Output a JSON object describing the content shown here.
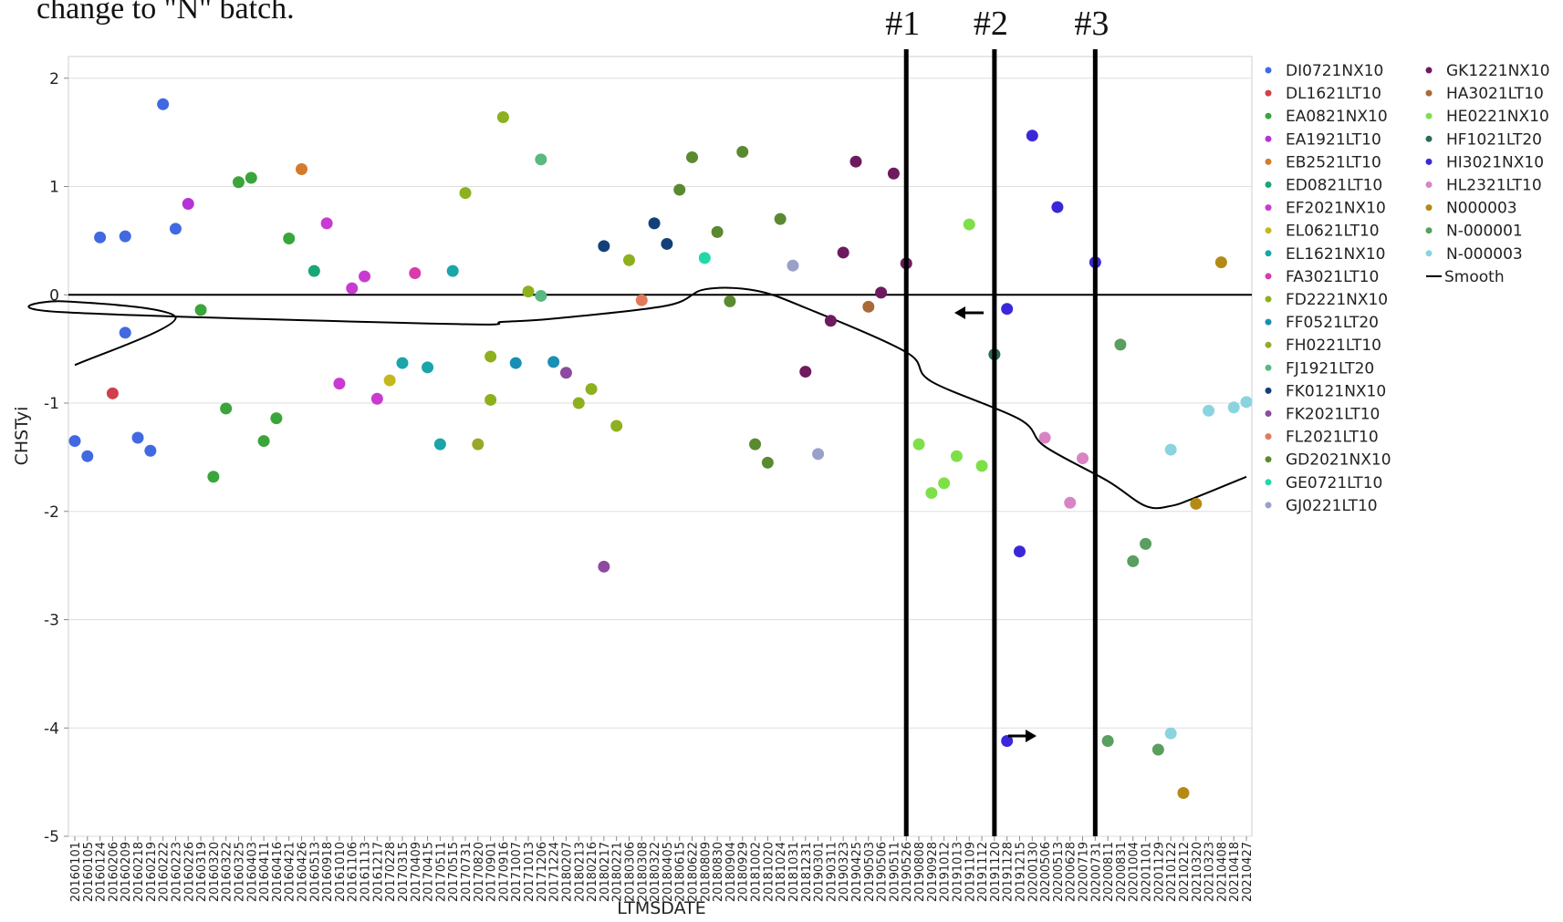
{
  "caption": "change to \"N\" batch.",
  "marker_labels": [
    "#1",
    "#2",
    "#3"
  ],
  "colors": {
    "DI0721NX10": "#4169e1",
    "DL1621LT10": "#d0404c",
    "EA0821NX10": "#3aa53a",
    "EA1921LT10": "#b534d6",
    "EB2521LT10": "#d47a2a",
    "ED0821LT10": "#1aa57a",
    "EF2021NX10": "#c83bd1",
    "EL0621LT10": "#c4b81e",
    "EL1621NX10": "#1aa5aa",
    "FA3021LT10": "#d93caa",
    "FD2221NX10": "#8db01e",
    "FF0521LT20": "#1a8fb5",
    "FH0221LT10": "#9aa82a",
    "FJ1921LT20": "#5ab882",
    "FK0121NX10": "#14407a",
    "FK2021LT10": "#8e4aa0",
    "FL2021LT10": "#e07a5a",
    "GD2021NX10": "#5a8a30",
    "GE0721LT10": "#20d8a8",
    "GJ0221LT10": "#9aa0c8",
    "GK1221NX10": "#6e1a5e",
    "HA3021LT10": "#a86a3a",
    "HE0221NX10": "#7ee048",
    "HF1021LT20": "#2a6a5a",
    "HI3021NX10": "#3a28d8",
    "HL2321LT10": "#d884c4",
    "N000003": "#b58a14",
    "N-000001": "#5a9e60",
    "N-000003": "#8ad4e0",
    "Smooth": "#000000"
  },
  "chart_data": {
    "type": "scatter",
    "title": "",
    "xlabel": "LTMSDATE",
    "ylabel": "CHSTyi",
    "ylim": [
      -5,
      2.2
    ],
    "yticks": [
      2,
      1,
      0,
      -1,
      -2,
      -3,
      -4,
      -5
    ],
    "grid": true,
    "reference_line_y": 0,
    "legend_position": "right",
    "legend": [
      "DI0721NX10",
      "DL1621LT10",
      "EA0821NX10",
      "EA1921LT10",
      "EB2521LT10",
      "ED0821LT10",
      "EF2021NX10",
      "EL0621LT10",
      "EL1621NX10",
      "FA3021LT10",
      "FD2221NX10",
      "FF0521LT20",
      "FH0221LT10",
      "FJ1921LT20",
      "FK0121NX10",
      "FK2021LT10",
      "FL2021LT10",
      "GD2021NX10",
      "GE0721LT10",
      "GJ0221LT10",
      "GK1221NX10",
      "HA3021LT10",
      "HE0221NX10",
      "HF1021LT20",
      "HI3021NX10",
      "HL2321LT10",
      "N000003",
      "N-000001",
      "N-000003",
      "Smooth"
    ],
    "categories": [
      "20160101",
      "20160105",
      "20160124",
      "20160206",
      "20160209",
      "20160218",
      "20160219",
      "20160222",
      "20160223",
      "20160226",
      "20160319",
      "20160320",
      "20160322",
      "20160325",
      "20160403",
      "20160411",
      "20160416",
      "20160421",
      "20160426",
      "20160513",
      "20160918",
      "20161010",
      "20161106",
      "20161113",
      "20161217",
      "20170228",
      "20170315",
      "20170409",
      "20170415",
      "20170511",
      "20170515",
      "20170731",
      "20170820",
      "20170901",
      "20170916",
      "20171007",
      "20171013",
      "20171206",
      "20171224",
      "20180207",
      "20180213",
      "20180216",
      "20180217",
      "20180221",
      "20180306",
      "20180308",
      "20180322",
      "20180405",
      "20180615",
      "20180622",
      "20180809",
      "20180830",
      "20180904",
      "20180929",
      "20181002",
      "20181020",
      "20181024",
      "20181031",
      "20181231",
      "20190301",
      "20190311",
      "20190323",
      "20190425",
      "20190503",
      "20190506",
      "20190511",
      "20190526",
      "20190808",
      "20190928",
      "20191012",
      "20191013",
      "20191109",
      "20191112",
      "20191120",
      "20191128",
      "20191215",
      "20200130",
      "20200506",
      "20200513",
      "20200628",
      "20200719",
      "20200731",
      "20200811",
      "20200831",
      "20201004",
      "20201101",
      "20201129",
      "20210122",
      "20210212",
      "20210320",
      "20210323",
      "20210408",
      "20210418",
      "20210427"
    ],
    "points": [
      {
        "x": "20160101",
        "y": -1.35,
        "series": "DI0721NX10"
      },
      {
        "x": "20160105",
        "y": -1.49,
        "series": "DI0721NX10"
      },
      {
        "x": "20160124",
        "y": 0.53,
        "series": "DI0721NX10"
      },
      {
        "x": "20160206",
        "y": -0.91,
        "series": "DL1621LT10"
      },
      {
        "x": "20160209",
        "y": 0.54,
        "series": "DI0721NX10"
      },
      {
        "x": "20160209",
        "y": -0.35,
        "series": "DI0721NX10"
      },
      {
        "x": "20160218",
        "y": -1.32,
        "series": "DI0721NX10"
      },
      {
        "x": "20160219",
        "y": -1.44,
        "series": "DI0721NX10"
      },
      {
        "x": "20160222",
        "y": 1.76,
        "series": "DI0721NX10"
      },
      {
        "x": "20160223",
        "y": 0.61,
        "series": "DI0721NX10"
      },
      {
        "x": "20160226",
        "y": 0.84,
        "series": "EA1921LT10"
      },
      {
        "x": "20160319",
        "y": -0.14,
        "series": "EA0821NX10"
      },
      {
        "x": "20160320",
        "y": -1.68,
        "series": "EA0821NX10"
      },
      {
        "x": "20160322",
        "y": -1.05,
        "series": "EA0821NX10"
      },
      {
        "x": "20160325",
        "y": 1.04,
        "series": "EA0821NX10"
      },
      {
        "x": "20160403",
        "y": 1.08,
        "series": "EA0821NX10"
      },
      {
        "x": "20160411",
        "y": -1.35,
        "series": "EA0821NX10"
      },
      {
        "x": "20160416",
        "y": -1.14,
        "series": "EA0821NX10"
      },
      {
        "x": "20160421",
        "y": 0.52,
        "series": "EA0821NX10"
      },
      {
        "x": "20160426",
        "y": 1.16,
        "series": "EB2521LT10"
      },
      {
        "x": "20160513",
        "y": 0.22,
        "series": "ED0821LT10"
      },
      {
        "x": "20160918",
        "y": 0.66,
        "series": "EF2021NX10"
      },
      {
        "x": "20161010",
        "y": -0.82,
        "series": "EF2021NX10"
      },
      {
        "x": "20161106",
        "y": 0.06,
        "series": "EF2021NX10"
      },
      {
        "x": "20161113",
        "y": 0.17,
        "series": "EF2021NX10"
      },
      {
        "x": "20161217",
        "y": -0.96,
        "series": "EF2021NX10"
      },
      {
        "x": "20170228",
        "y": -0.79,
        "series": "EL0621LT10"
      },
      {
        "x": "20170315",
        "y": -0.63,
        "series": "EL1621NX10"
      },
      {
        "x": "20170409",
        "y": 0.2,
        "series": "FA3021LT10"
      },
      {
        "x": "20170415",
        "y": -0.67,
        "series": "EL1621NX10"
      },
      {
        "x": "20170511",
        "y": -1.38,
        "series": "EL1621NX10"
      },
      {
        "x": "20170515",
        "y": 0.22,
        "series": "EL1621NX10"
      },
      {
        "x": "20170731",
        "y": 0.94,
        "series": "FD2221NX10"
      },
      {
        "x": "20170820",
        "y": -1.38,
        "series": "FH0221LT10"
      },
      {
        "x": "20170901",
        "y": -0.57,
        "series": "FD2221NX10"
      },
      {
        "x": "20170901",
        "y": -0.97,
        "series": "FD2221NX10"
      },
      {
        "x": "20170916",
        "y": 1.64,
        "series": "FD2221NX10"
      },
      {
        "x": "20171007",
        "y": -0.63,
        "series": "FF0521LT20"
      },
      {
        "x": "20171013",
        "y": 0.03,
        "series": "FD2221NX10"
      },
      {
        "x": "20171206",
        "y": 1.25,
        "series": "FJ1921LT20"
      },
      {
        "x": "20171206",
        "y": -0.01,
        "series": "FJ1921LT20"
      },
      {
        "x": "20171224",
        "y": -0.62,
        "series": "FF0521LT20"
      },
      {
        "x": "20180207",
        "y": -0.72,
        "series": "FK2021LT10"
      },
      {
        "x": "20180213",
        "y": -1.0,
        "series": "FD2221NX10"
      },
      {
        "x": "20180216",
        "y": -0.87,
        "series": "FD2221NX10"
      },
      {
        "x": "20180217",
        "y": 0.45,
        "series": "FK0121NX10"
      },
      {
        "x": "20180217",
        "y": -2.51,
        "series": "FK2021LT10"
      },
      {
        "x": "20180221",
        "y": -1.21,
        "series": "FD2221NX10"
      },
      {
        "x": "20180306",
        "y": 0.32,
        "series": "FD2221NX10"
      },
      {
        "x": "20180308",
        "y": -0.05,
        "series": "FL2021LT10"
      },
      {
        "x": "20180322",
        "y": 0.66,
        "series": "FK0121NX10"
      },
      {
        "x": "20180405",
        "y": 0.47,
        "series": "FK0121NX10"
      },
      {
        "x": "20180615",
        "y": 0.97,
        "series": "GD2021NX10"
      },
      {
        "x": "20180622",
        "y": 1.27,
        "series": "GD2021NX10"
      },
      {
        "x": "20180809",
        "y": 0.34,
        "series": "GE0721LT10"
      },
      {
        "x": "20180830",
        "y": 0.58,
        "series": "GD2021NX10"
      },
      {
        "x": "20180904",
        "y": -0.06,
        "series": "GD2021NX10"
      },
      {
        "x": "20180929",
        "y": 1.32,
        "series": "GD2021NX10"
      },
      {
        "x": "20181002",
        "y": -1.38,
        "series": "GD2021NX10"
      },
      {
        "x": "20181020",
        "y": -1.55,
        "series": "GD2021NX10"
      },
      {
        "x": "20181024",
        "y": 0.7,
        "series": "GD2021NX10"
      },
      {
        "x": "20181031",
        "y": 0.27,
        "series": "GJ0221LT10"
      },
      {
        "x": "20181231",
        "y": -0.71,
        "series": "GK1221NX10"
      },
      {
        "x": "20190301",
        "y": -1.47,
        "series": "GJ0221LT10"
      },
      {
        "x": "20190311",
        "y": -0.24,
        "series": "GK1221NX10"
      },
      {
        "x": "20190323",
        "y": 0.39,
        "series": "GK1221NX10"
      },
      {
        "x": "20190425",
        "y": 1.23,
        "series": "GK1221NX10"
      },
      {
        "x": "20190503",
        "y": -0.11,
        "series": "HA3021LT10"
      },
      {
        "x": "20190506",
        "y": 0.02,
        "series": "GK1221NX10"
      },
      {
        "x": "20190511",
        "y": 1.12,
        "series": "GK1221NX10"
      },
      {
        "x": "20190526",
        "y": 0.29,
        "series": "GK1221NX10"
      },
      {
        "x": "20190808",
        "y": -1.38,
        "series": "HE0221NX10"
      },
      {
        "x": "20190928",
        "y": -1.83,
        "series": "HE0221NX10"
      },
      {
        "x": "20191012",
        "y": -1.74,
        "series": "HE0221NX10"
      },
      {
        "x": "20191013",
        "y": -1.49,
        "series": "HE0221NX10"
      },
      {
        "x": "20191109",
        "y": 0.65,
        "series": "HE0221NX10"
      },
      {
        "x": "20191112",
        "y": -1.58,
        "series": "HE0221NX10"
      },
      {
        "x": "20191120",
        "y": -0.55,
        "series": "HF1021LT20"
      },
      {
        "x": "20191128",
        "y": -0.13,
        "series": "HI3021NX10"
      },
      {
        "x": "20191128",
        "y": -4.12,
        "series": "HI3021NX10"
      },
      {
        "x": "20191215",
        "y": -2.37,
        "series": "HI3021NX10"
      },
      {
        "x": "20200130",
        "y": 1.47,
        "series": "HI3021NX10"
      },
      {
        "x": "20200506",
        "y": -1.32,
        "series": "HL2321LT10"
      },
      {
        "x": "20200513",
        "y": 0.81,
        "series": "HI3021NX10"
      },
      {
        "x": "20200628",
        "y": -1.92,
        "series": "HL2321LT10"
      },
      {
        "x": "20200719",
        "y": -1.51,
        "series": "HL2321LT10"
      },
      {
        "x": "20200731",
        "y": 0.3,
        "series": "HI3021NX10"
      },
      {
        "x": "20200811",
        "y": -4.12,
        "series": "N-000001"
      },
      {
        "x": "20200831",
        "y": -0.46,
        "series": "N-000001"
      },
      {
        "x": "20201004",
        "y": -2.46,
        "series": "N-000001"
      },
      {
        "x": "20201101",
        "y": -2.3,
        "series": "N-000001"
      },
      {
        "x": "20201129",
        "y": -4.2,
        "series": "N-000001"
      },
      {
        "x": "20210122",
        "y": -4.05,
        "series": "N-000003"
      },
      {
        "x": "20210122",
        "y": -1.43,
        "series": "N-000003"
      },
      {
        "x": "20210212",
        "y": -4.6,
        "series": "N000003"
      },
      {
        "x": "20210320",
        "y": -1.93,
        "series": "N000003"
      },
      {
        "x": "20210323",
        "y": -1.07,
        "series": "N-000003"
      },
      {
        "x": "20210408",
        "y": 0.3,
        "series": "N000003"
      },
      {
        "x": "20210418",
        "y": -1.04,
        "series": "N-000003"
      },
      {
        "x": "20210427",
        "y": -0.99,
        "series": "N-000003"
      }
    ],
    "smooth": {
      "name": "Smooth",
      "x": [
        "20160101",
        "20160223",
        "20160418",
        "20160901",
        "20170515",
        "20170916",
        "20171224",
        "20180405",
        "20180809",
        "20181002",
        "20181231",
        "20190526",
        "20190928",
        "20191215",
        "20200506",
        "20200811",
        "20201101",
        "20210122",
        "20210320",
        "20210427"
      ],
      "y": [
        -0.65,
        -0.21,
        -0.06,
        -0.16,
        -0.27,
        -0.25,
        -0.22,
        -0.1,
        0.05,
        0.04,
        -0.12,
        -0.53,
        -0.8,
        -1.15,
        -1.4,
        -1.72,
        -1.95,
        -1.95,
        -1.87,
        -1.68
      ]
    },
    "vertical_markers": [
      {
        "label": "#1",
        "x": "20190526"
      },
      {
        "label": "#2",
        "x": "20191120"
      },
      {
        "label": "#3",
        "x": "20200731"
      }
    ]
  }
}
